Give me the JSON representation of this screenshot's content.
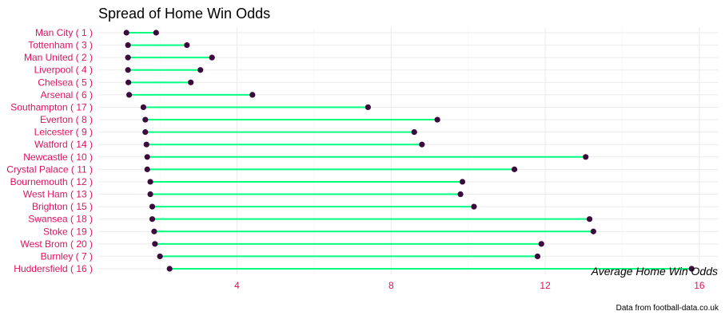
{
  "chart_data": {
    "type": "dumbbell",
    "title": "Spread of Home Win Odds",
    "annotation": "Average Home Win Odds",
    "caption": "Data from football-data.co.uk",
    "colors": {
      "segment": "#00ff7f",
      "point": "#3d0a3d",
      "labels": "#e0115f",
      "grid": "#ebebeb"
    },
    "xlim": [
      0.4,
      16.5
    ],
    "xticks": [
      4,
      8,
      12,
      16
    ],
    "grid": true,
    "categories": [
      "Man City ( 1 )",
      "Tottenham ( 3 )",
      "Man United ( 2 )",
      "Liverpool ( 4 )",
      "Chelsea ( 5 )",
      "Arsenal ( 6 )",
      "Southampton ( 17 )",
      "Everton ( 8 )",
      "Leicester ( 9 )",
      "Watford ( 14 )",
      "Newcastle ( 10 )",
      "Crystal Palace ( 11 )",
      "Bournemouth ( 12 )",
      "West Ham ( 13 )",
      "Brighton ( 15 )",
      "Swansea ( 18 )",
      "Stoke ( 19 )",
      "West Brom ( 20 )",
      "Burnley ( 7 )",
      "Huddersfield ( 16 )"
    ],
    "min": [
      1.13,
      1.17,
      1.17,
      1.17,
      1.18,
      1.2,
      1.57,
      1.62,
      1.62,
      1.65,
      1.67,
      1.67,
      1.75,
      1.75,
      1.8,
      1.8,
      1.85,
      1.87,
      2.0,
      2.25
    ],
    "max": [
      1.9,
      2.7,
      3.35,
      3.05,
      2.8,
      4.4,
      7.4,
      9.2,
      8.6,
      8.8,
      13.05,
      11.2,
      9.85,
      9.8,
      10.15,
      13.15,
      13.25,
      11.9,
      11.8,
      15.8
    ]
  }
}
